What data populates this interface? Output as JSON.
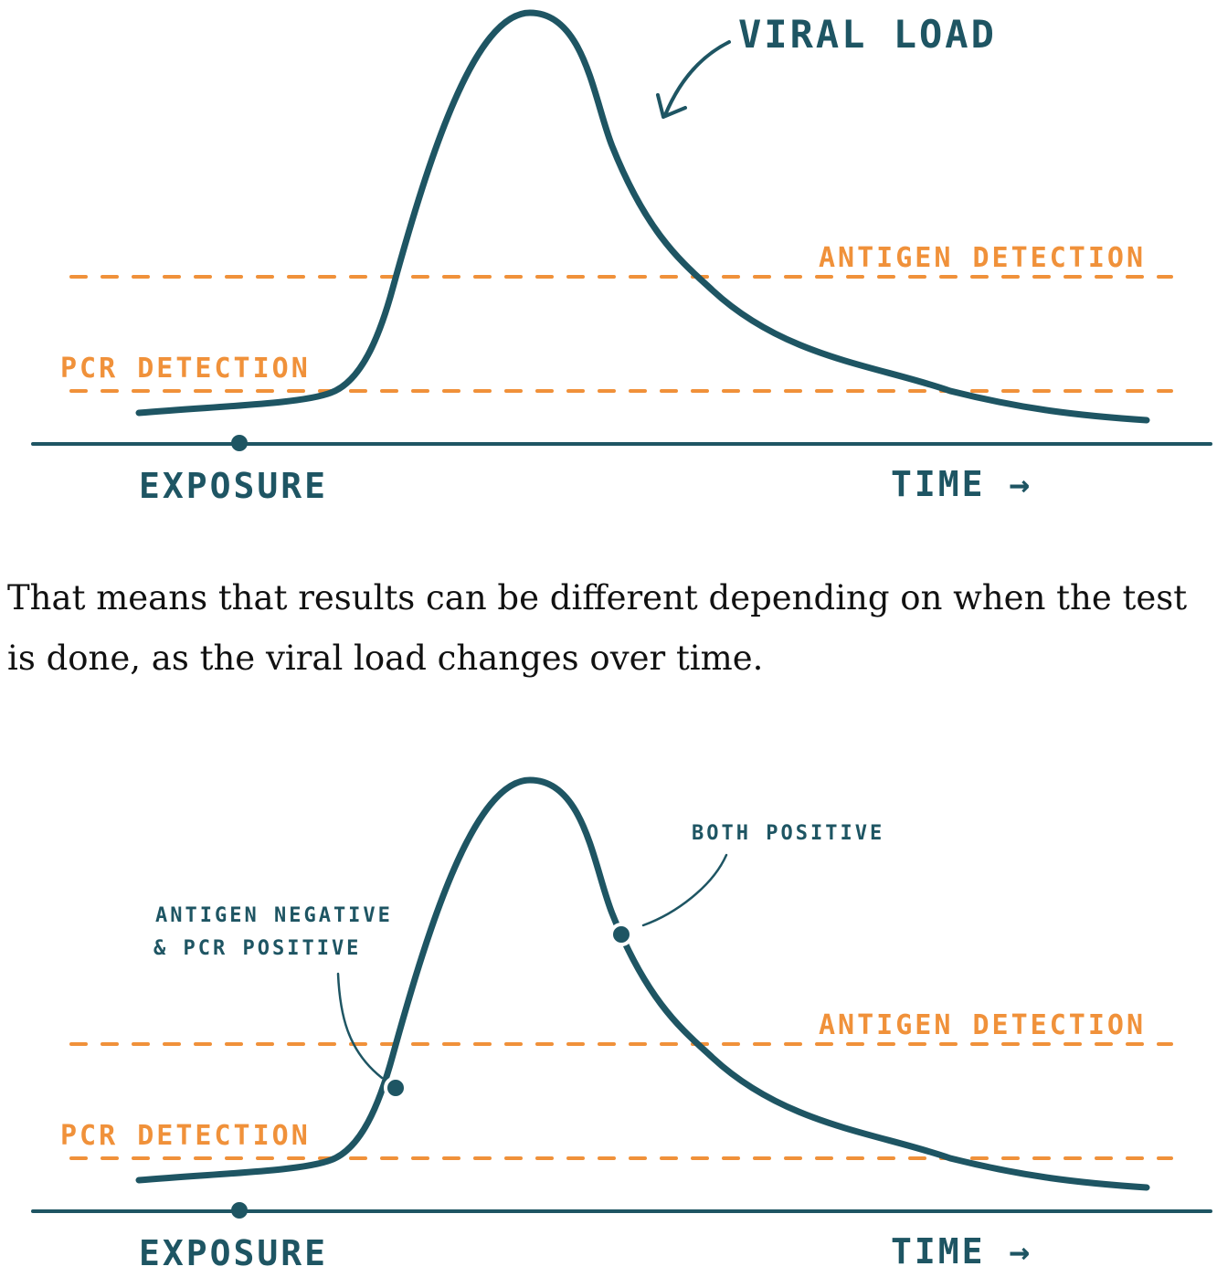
{
  "figure_1": {
    "curve_label": "VIRAL LOAD",
    "antigen_label": "ANTIGEN DETECTION",
    "pcr_label": "PCR DETECTION",
    "exposure_label": "EXPOSURE",
    "time_label": "TIME →"
  },
  "paragraph": "That means that results can be different depending on when the test is done, as the viral load changes over time.",
  "figure_2": {
    "antigen_label": "ANTIGEN DETECTION",
    "pcr_label": "PCR DETECTION",
    "exposure_label": "EXPOSURE",
    "time_label": "TIME →",
    "annotation_early_line1": "ANTIGEN NEGATIVE",
    "annotation_early_line2": "& PCR POSITIVE",
    "annotation_peak": "BOTH POSITIVE"
  },
  "colors": {
    "curve": "#1e5563",
    "threshold": "#f0913a",
    "text": "#111111"
  }
}
